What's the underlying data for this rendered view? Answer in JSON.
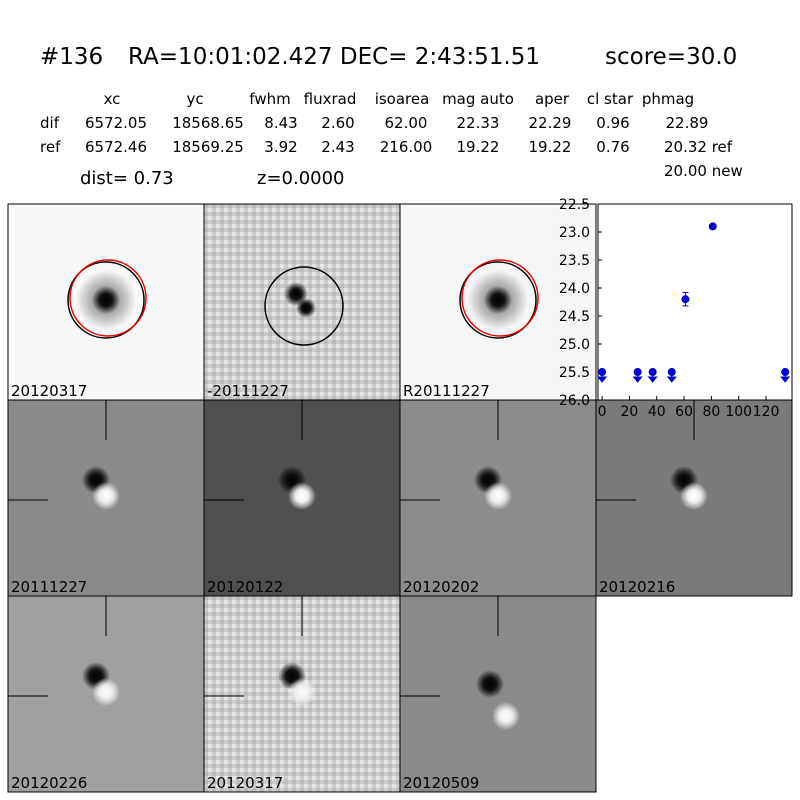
{
  "header": {
    "id": "#136",
    "coords": "RA=10:01:02.427 DEC= 2:43:51.51",
    "score": "score=30.0"
  },
  "table": {
    "columns": [
      "xc",
      "yc",
      "fwhm",
      "fluxrad",
      "isoarea",
      "mag auto",
      "aper",
      "cl star",
      "phmag"
    ],
    "rows": [
      [
        "dif",
        "6572.05",
        "18568.65",
        "8.43",
        "2.60",
        "62.00",
        "22.33",
        "22.29",
        "0.96",
        "22.89"
      ],
      [
        "ref",
        "6572.46",
        "18569.25",
        "3.92",
        "2.43",
        "216.00",
        "19.22",
        "19.22",
        "0.76",
        "20.32 ref"
      ]
    ],
    "extra": "20.00 new"
  },
  "dist": "dist=  0.73",
  "z": "z=0.0000",
  "panels": [
    {
      "label": "20120317"
    },
    {
      "label": "-20111227"
    },
    {
      "label": "R20111227"
    },
    {
      "label": "20111227"
    },
    {
      "label": "20120122"
    },
    {
      "label": "20120202"
    },
    {
      "label": "20120216"
    },
    {
      "label": "20120226"
    },
    {
      "label": "20120317",
      "color": "#ff0000"
    },
    {
      "label": "20120509"
    }
  ],
  "chart_data": {
    "type": "scatter",
    "invert_y": true,
    "xlim": [
      -3,
      139
    ],
    "xticks": [
      0,
      20,
      40,
      60,
      80,
      100,
      120
    ],
    "ylim": [
      26.0,
      22.5
    ],
    "yticks": [
      22.5,
      {
        "value": 23,
        "label": "23.0"
      },
      23.5,
      {
        "value": 24,
        "label": "24.0"
      },
      24.5,
      {
        "value": 25,
        "label": "25.0"
      },
      25.5,
      {
        "value": 26,
        "label": "26.0"
      }
    ],
    "series": [
      {
        "color": "#0000cc",
        "marker": "point",
        "x": [
          61,
          81
        ],
        "values": [
          24.2,
          22.9
        ],
        "errors": [
          0.12,
          0.03
        ]
      },
      {
        "color": "#0000cc",
        "marker": "limit",
        "x": [
          0,
          26,
          37,
          51,
          134
        ],
        "values": [
          25.5,
          25.5,
          25.5,
          25.5,
          25.5
        ]
      }
    ]
  }
}
